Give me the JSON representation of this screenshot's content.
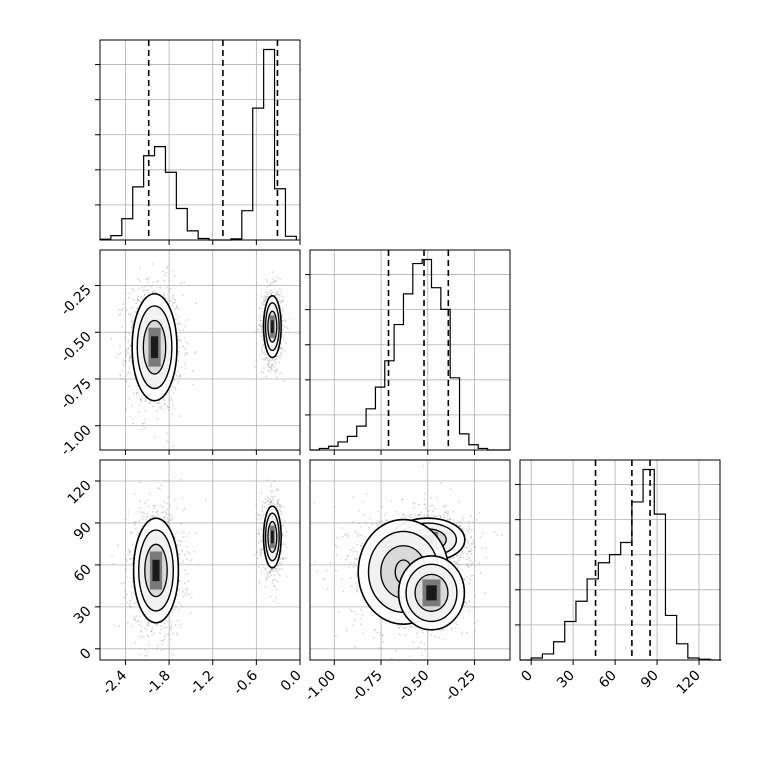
{
  "chart_data": {
    "type": "corner",
    "title": "",
    "parameters": [
      {
        "ticks": [
          "-2.4",
          "-1.8",
          "-1.2",
          "-0.6",
          "0.0"
        ],
        "range": [
          -2.75,
          0.0
        ]
      },
      {
        "ticks": [
          "-1.00",
          "-0.75",
          "-0.50",
          "-0.25"
        ],
        "range": [
          -1.13,
          -0.06
        ]
      },
      {
        "ticks": [
          "0",
          "30",
          "60",
          "90",
          "120"
        ],
        "range": [
          -8,
          135
        ]
      }
    ],
    "quantile_lines": [
      [
        -2.08,
        -1.06,
        -0.31
      ],
      [
        -0.71,
        -0.52,
        -0.39
      ],
      [
        46,
        72,
        85
      ]
    ],
    "histograms": [
      {
        "bins": [
          -2.75,
          -2.6,
          -2.45,
          -2.3,
          -2.15,
          -2.0,
          -1.85,
          -1.7,
          -1.55,
          -1.4,
          -1.25,
          -1.1,
          -0.95,
          -0.8,
          -0.65,
          -0.5,
          -0.35,
          -0.2,
          -0.05
        ],
        "counts": [
          0.2,
          1.2,
          5.8,
          14.5,
          23,
          25.5,
          18.5,
          8.6,
          2.5,
          0.4,
          0,
          0,
          0.3,
          8,
          36,
          52,
          14,
          1,
          0
        ]
      },
      {
        "bins": [
          -1.13,
          -1.08,
          -1.03,
          -0.98,
          -0.93,
          -0.88,
          -0.83,
          -0.78,
          -0.73,
          -0.68,
          -0.63,
          -0.58,
          -0.53,
          -0.48,
          -0.43,
          -0.38,
          -0.33,
          -0.28,
          -0.23,
          -0.18,
          -0.13,
          -0.08
        ],
        "counts": [
          0,
          0.5,
          1.2,
          2.6,
          4.4,
          7.7,
          13.3,
          20.3,
          28.8,
          40.5,
          50.4,
          60.2,
          61.5,
          52.4,
          45.4,
          23.3,
          5.2,
          1.7,
          0.5,
          0,
          0
        ]
      },
      {
        "bins": [
          -8,
          0,
          8,
          16,
          24,
          32,
          40,
          48,
          56,
          64,
          72,
          80,
          88,
          96,
          104,
          112,
          120,
          128,
          136
        ],
        "counts": [
          0,
          0.5,
          1.5,
          4.5,
          9.5,
          14.5,
          20,
          24,
          26,
          29,
          39,
          47,
          36,
          11,
          4,
          0.5,
          0.2,
          0
        ]
      }
    ],
    "clusters_2d": [
      {
        "x": 0,
        "y": 1,
        "blobs": [
          {
            "cx": -2.0,
            "cy": -0.58,
            "sx": 0.14,
            "sy": 0.13,
            "n": 1100
          },
          {
            "cx": -0.38,
            "cy": -0.47,
            "sx": 0.055,
            "sy": 0.075,
            "n": 700
          }
        ]
      },
      {
        "x": 0,
        "y": 2,
        "blobs": [
          {
            "cx": -1.98,
            "cy": 56,
            "sx": 0.14,
            "sy": 17,
            "n": 1100
          },
          {
            "cx": -0.38,
            "cy": 80,
            "sx": 0.055,
            "sy": 10,
            "n": 700
          }
        ]
      },
      {
        "x": 1,
        "y": 2,
        "blobs": [
          {
            "cx": -0.5,
            "cy": 78,
            "sx": 0.09,
            "sy": 7,
            "n": 900
          },
          {
            "cx": -0.63,
            "cy": 55,
            "sx": 0.11,
            "sy": 17,
            "n": 800
          },
          {
            "cx": -0.48,
            "cy": 40,
            "sx": 0.08,
            "sy": 12,
            "n": 300
          }
        ]
      }
    ]
  },
  "colors": {
    "points": "#8c8c8c",
    "lines": "#000000",
    "grid": "#b0b0b0",
    "dark": "#1a1a1a",
    "mid": "#7a7a7a"
  }
}
